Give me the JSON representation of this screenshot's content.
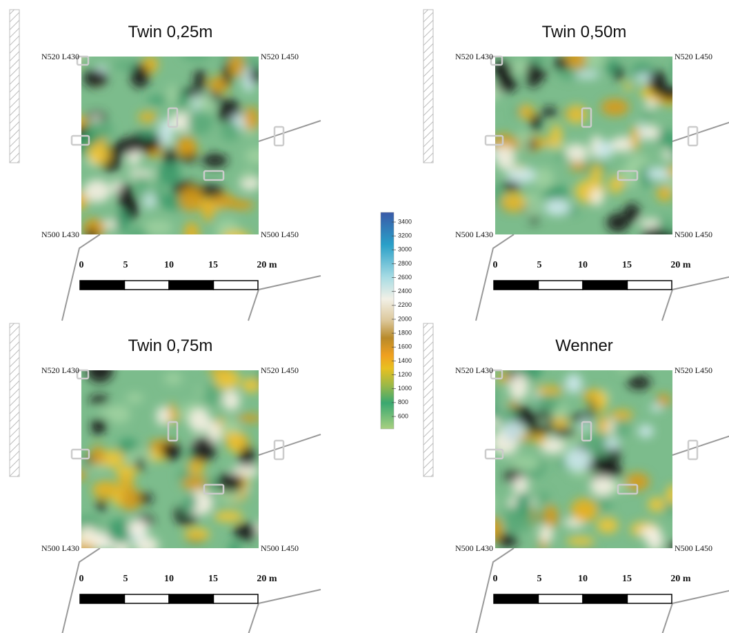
{
  "panels": [
    {
      "title": "Twin 0,25m",
      "corners": [
        "N520 L430",
        "N520 L450",
        "N500 L430",
        "N500 L450"
      ],
      "scale_labels": [
        "0",
        "5",
        "10",
        "15",
        "20 m"
      ]
    },
    {
      "title": "Twin 0,50m",
      "corners": [
        "N520 L430",
        "N520 L450",
        "N500 L430",
        "N500 L450"
      ],
      "scale_labels": [
        "0",
        "5",
        "10",
        "15",
        "20 m"
      ]
    },
    {
      "title": "Twin 0,75m",
      "corners": [
        "N520 L430",
        "N520 L450",
        "N500 L430",
        "N500 L450"
      ],
      "scale_labels": [
        "0",
        "5",
        "10",
        "15",
        "20 m"
      ]
    },
    {
      "title": "Wenner",
      "corners": [
        "N520 L430",
        "N520 L450",
        "N500 L430",
        "N500 L450"
      ],
      "scale_labels": [
        "0",
        "5",
        "10",
        "15",
        "20 m"
      ]
    }
  ],
  "colorbar": {
    "ticks": [
      3400,
      3200,
      3000,
      2800,
      2600,
      2400,
      2200,
      2000,
      1800,
      1600,
      1400,
      1200,
      1000,
      800,
      600
    ]
  }
}
